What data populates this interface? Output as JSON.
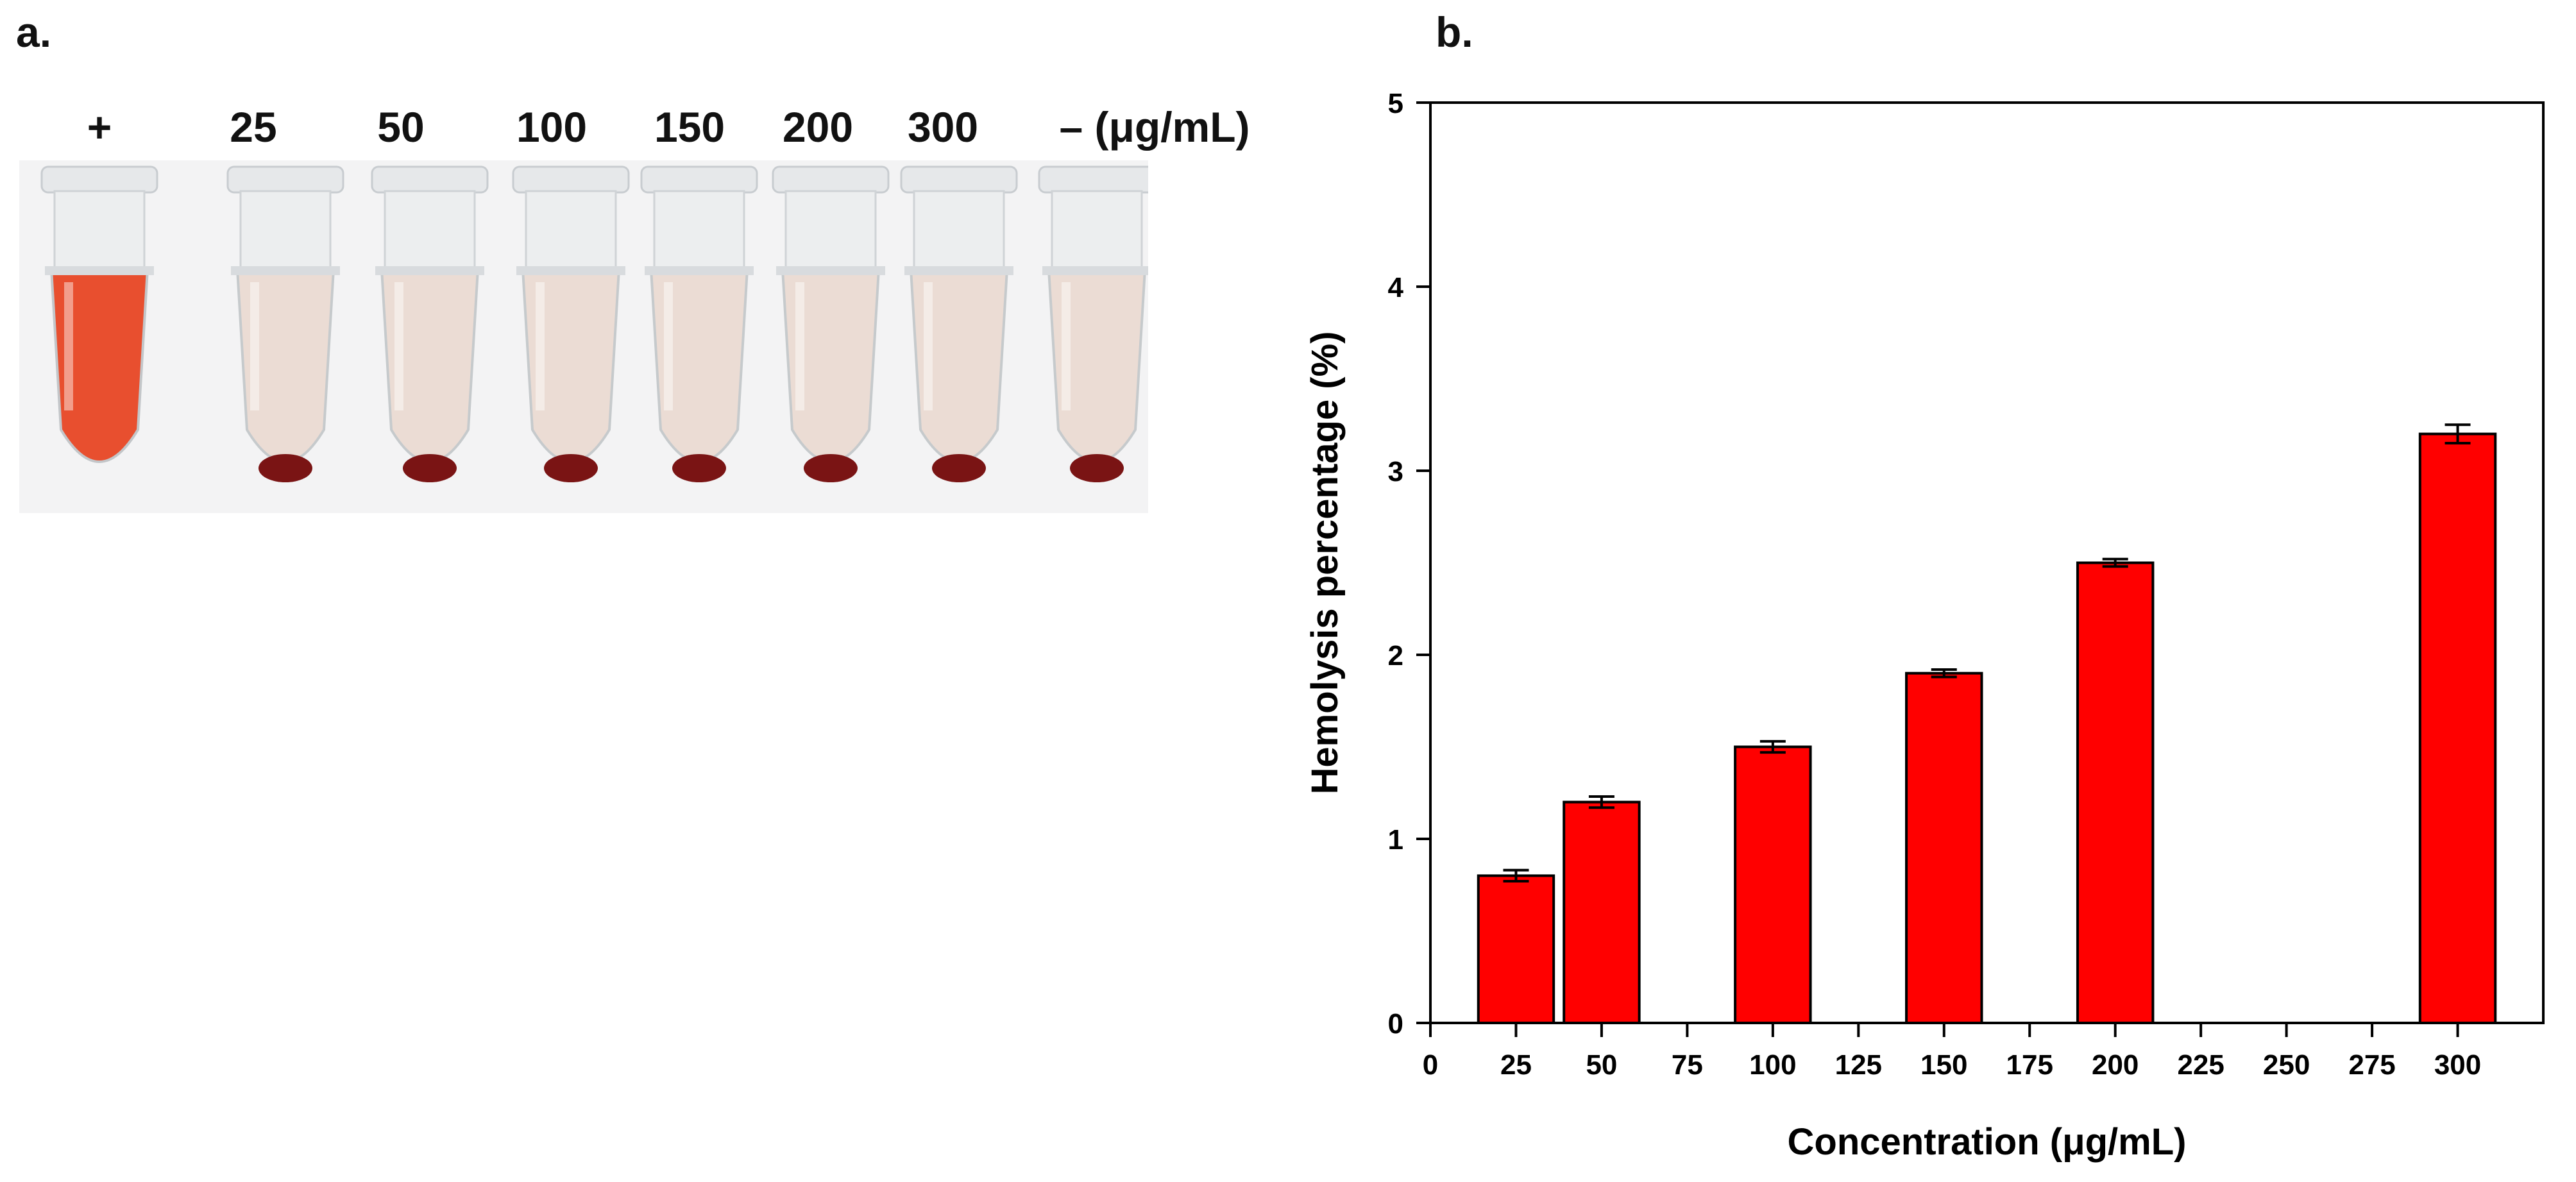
{
  "panels": {
    "a": "a.",
    "b": "b."
  },
  "photo": {
    "tube_labels": [
      "+",
      "25",
      "50",
      "100",
      "150",
      "200",
      "300",
      "– (μg/mL)"
    ],
    "colors": {
      "positive": "#e8421f",
      "pellet": "#7a1414",
      "supernatant": "#ead8cf"
    }
  },
  "chart_data": {
    "type": "bar",
    "title": "",
    "xlabel": "Concentration (μg/mL)",
    "ylabel": "Hemolysis percentage (%)",
    "x": [
      25,
      50,
      100,
      150,
      200,
      300
    ],
    "values": [
      0.8,
      1.2,
      1.5,
      1.9,
      2.5,
      3.2
    ],
    "errors": [
      0.03,
      0.03,
      0.03,
      0.02,
      0.02,
      0.05
    ],
    "xlim": [
      0,
      325
    ],
    "ylim": [
      0,
      5
    ],
    "x_ticks": [
      0,
      25,
      50,
      75,
      100,
      125,
      150,
      175,
      200,
      225,
      250,
      275,
      300
    ],
    "y_ticks": [
      0,
      1,
      2,
      3,
      4,
      5
    ],
    "bar_color": "#ff0000"
  }
}
